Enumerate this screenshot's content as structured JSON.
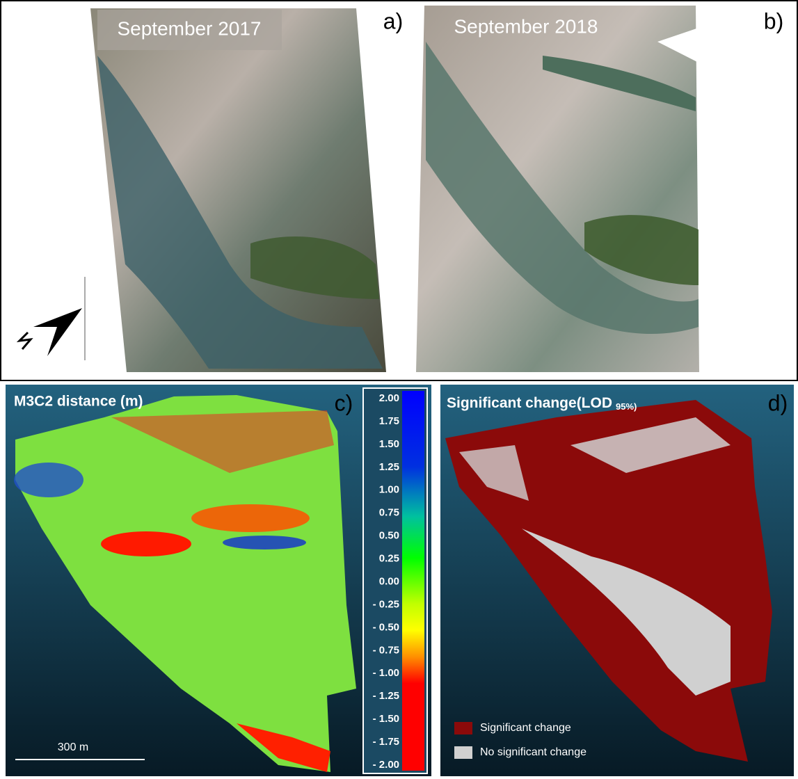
{
  "panels": {
    "a": {
      "caption": "September 2017",
      "tag": "a)"
    },
    "b": {
      "caption": "September 2018",
      "tag": "b)"
    },
    "c": {
      "title": "M3C2 distance (m)",
      "tag": "c)",
      "scale_bar": "300 m",
      "colorbar_labels": [
        "2.00",
        "1.75",
        "1.50",
        "1.25",
        "1.00",
        "0.75",
        "0.50",
        "0.25",
        "0.00",
        "- 0.25",
        "- 0.50",
        "- 0.75",
        "- 1.00",
        "- 1.25",
        "- 1.50",
        "- 1.75",
        "- 2.00"
      ]
    },
    "d": {
      "title": "Significant change(LOD",
      "title_subscript": "95%)",
      "tag": "d)",
      "legend": [
        "Significant change",
        "No significant change"
      ]
    }
  }
}
